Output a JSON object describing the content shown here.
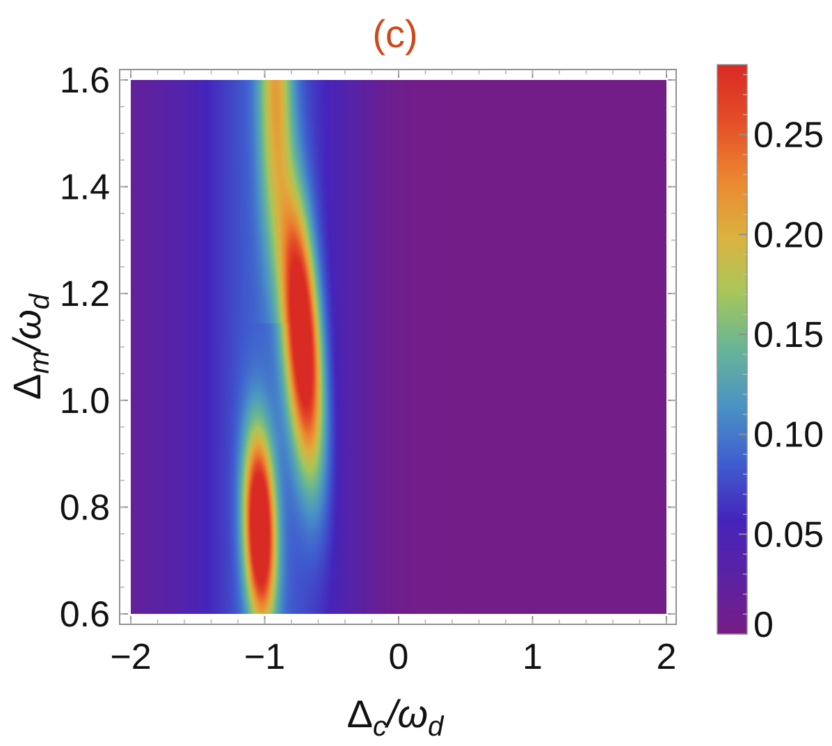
{
  "chart_data": {
    "type": "heatmap",
    "title": "(c)",
    "title_color": "#cc4a1a",
    "xlabel": {
      "main": "Δ",
      "sub1": "c",
      "slash": "/ω",
      "sub2": "d"
    },
    "ylabel": {
      "main": "Δ",
      "sub1": "m",
      "slash": "/ω",
      "sub2": "d"
    },
    "xlim": [
      -2,
      2
    ],
    "ylim": [
      0.6,
      1.6
    ],
    "x_ticks": [
      {
        "value": -2,
        "label": "−2"
      },
      {
        "value": -1,
        "label": "−1"
      },
      {
        "value": 0,
        "label": "0"
      },
      {
        "value": 1,
        "label": "1"
      },
      {
        "value": 2,
        "label": "2"
      }
    ],
    "y_ticks": [
      {
        "value": 0.6,
        "label": "0.6"
      },
      {
        "value": 0.8,
        "label": "0.8"
      },
      {
        "value": 1.0,
        "label": "1.0"
      },
      {
        "value": 1.2,
        "label": "1.2"
      },
      {
        "value": 1.4,
        "label": "1.4"
      },
      {
        "value": 1.6,
        "label": "1.6"
      }
    ],
    "colorbar": {
      "range": [
        0,
        0.285
      ],
      "ticks": [
        {
          "value": 0,
          "label": "0"
        },
        {
          "value": 0.05,
          "label": "0.05"
        },
        {
          "value": 0.1,
          "label": "0.10"
        },
        {
          "value": 0.15,
          "label": "0.15"
        },
        {
          "value": 0.2,
          "label": "0.20"
        },
        {
          "value": 0.25,
          "label": "0.25"
        }
      ],
      "colormap": [
        "#771c85",
        "#5b22a3",
        "#4524bb",
        "#3f5ecf",
        "#4a93c5",
        "#66b596",
        "#a8c65a",
        "#dcb13e",
        "#ec8530",
        "#e44e28",
        "#d92a24"
      ]
    },
    "features": [
      {
        "type": "background",
        "value": 0.004,
        "slope_left": 0.03
      },
      {
        "type": "ridge",
        "name": "upper",
        "x_top": -0.85,
        "x_bottom": -0.58,
        "y_top": 1.6,
        "y_bottom": 0.6,
        "peak_y": 1.12,
        "peak_value": 0.275,
        "y_spread": 0.25,
        "x_width": 0.13
      },
      {
        "type": "ridge",
        "name": "lower",
        "x_top": -1.12,
        "x_bottom": -1.02,
        "y_top": 1.6,
        "y_bottom": 0.6,
        "peak_y": 0.76,
        "peak_value": 0.285,
        "y_spread": 0.17,
        "x_width": 0.11
      },
      {
        "type": "ridge",
        "name": "upper-column",
        "x_top": -0.92,
        "x_bottom": -0.92,
        "y_top": 1.6,
        "y_bottom": 1.25,
        "peak_y": 1.6,
        "peak_value": 0.12,
        "y_spread": 0.3,
        "x_width": 0.12
      }
    ]
  }
}
